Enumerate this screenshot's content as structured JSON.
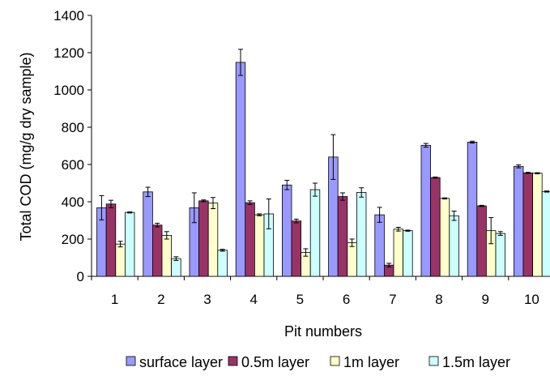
{
  "chart_data": {
    "type": "bar",
    "xlabel": "Pit numbers",
    "ylabel": "Total COD (mg/g dry sample)",
    "ylim": [
      0,
      1400
    ],
    "yticks": [
      0,
      200,
      400,
      600,
      800,
      1000,
      1200,
      1400
    ],
    "grid": false,
    "legend_position": "bottom",
    "categories": [
      "1",
      "2",
      "3",
      "4",
      "5",
      "6",
      "7",
      "8",
      "9",
      "10"
    ],
    "series": [
      {
        "name": "surface layer",
        "color": "#9999FF",
        "values": [
          368,
          453,
          368,
          1148,
          490,
          640,
          330,
          703,
          720,
          590
        ],
        "errors": [
          65,
          25,
          80,
          70,
          25,
          120,
          40,
          10,
          5,
          8
        ]
      },
      {
        "name": "0.5m  layer",
        "color": "#993366",
        "values": [
          388,
          275,
          405,
          395,
          297,
          428,
          60,
          530,
          378,
          555
        ],
        "errors": [
          20,
          10,
          5,
          10,
          10,
          20,
          10,
          3,
          3,
          3
        ]
      },
      {
        "name": "1m layer",
        "color": "#FFFFCC",
        "values": [
          173,
          220,
          393,
          330,
          128,
          180,
          253,
          418,
          245,
          553
        ],
        "errors": [
          15,
          20,
          30,
          5,
          20,
          20,
          10,
          3,
          70,
          3
        ]
      },
      {
        "name": "1.5m layer",
        "color": "#CCFFFF",
        "values": [
          343,
          95,
          140,
          335,
          465,
          450,
          245,
          325,
          230,
          455
        ],
        "errors": [
          3,
          10,
          5,
          80,
          35,
          25,
          3,
          25,
          10,
          3
        ]
      }
    ]
  }
}
